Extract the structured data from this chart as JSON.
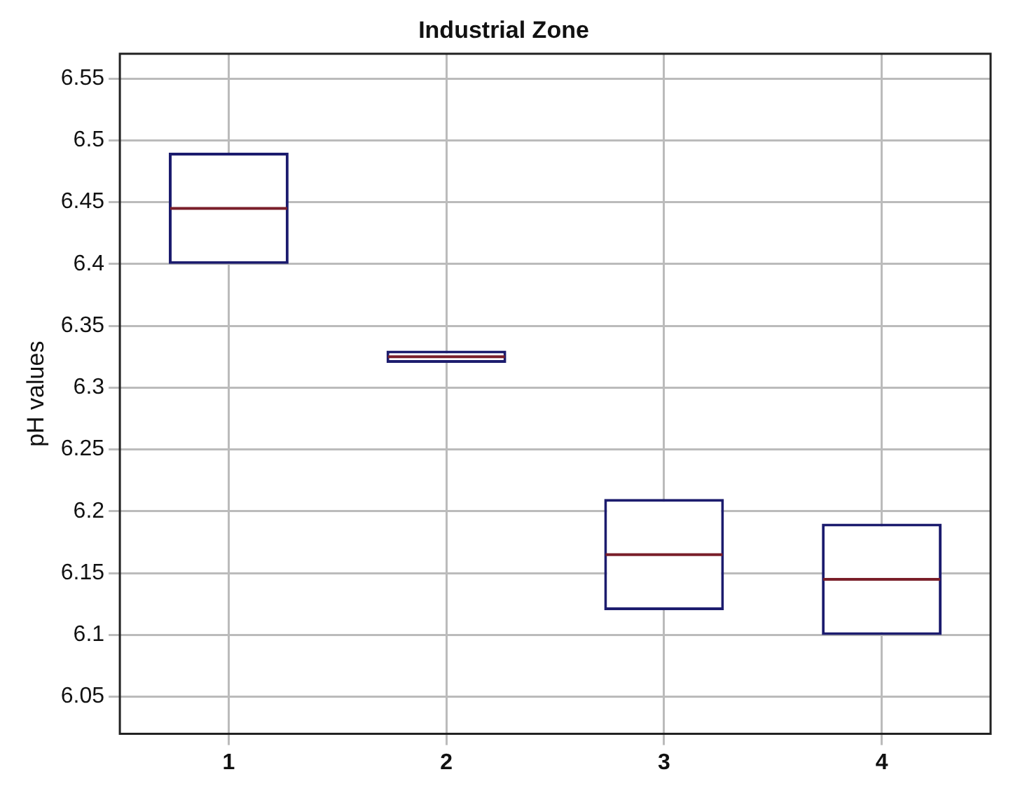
{
  "chart_data": {
    "type": "box",
    "title": "Industrial Zone",
    "ylabel": "pH values",
    "categories": [
      "1",
      "2",
      "3",
      "4"
    ],
    "boxes": [
      {
        "low": 6.4,
        "q1": 6.4,
        "median": 6.445,
        "q3": 6.49,
        "high": 6.49
      },
      {
        "low": 6.32,
        "q1": 6.32,
        "median": 6.325,
        "q3": 6.33,
        "high": 6.33
      },
      {
        "low": 6.12,
        "q1": 6.12,
        "median": 6.165,
        "q3": 6.21,
        "high": 6.21
      },
      {
        "low": 6.1,
        "q1": 6.1,
        "median": 6.145,
        "q3": 6.19,
        "high": 6.19
      }
    ],
    "color": "#1c1c6e",
    "ylim": [
      6.02,
      6.57
    ],
    "yticks": [
      6.05,
      6.1,
      6.15,
      6.2,
      6.25,
      6.3,
      6.35,
      6.4,
      6.45,
      6.5,
      6.55
    ],
    "grid": true
  }
}
